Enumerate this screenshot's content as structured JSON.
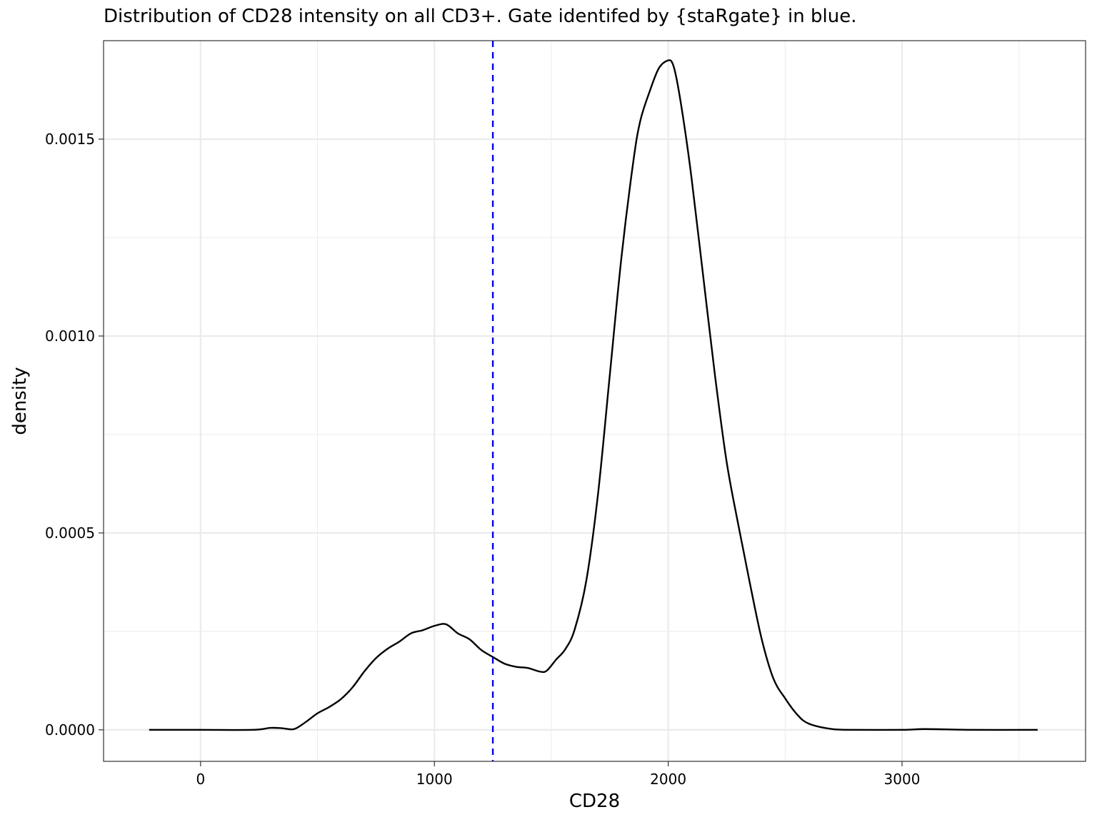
{
  "chart_data": {
    "type": "line",
    "title": "Distribution of CD28 intensity on all CD3+. Gate identifed by {staRgate} in blue.",
    "xlabel": "CD28",
    "ylabel": "density",
    "xlim": [
      -415,
      3785
    ],
    "ylim": [
      -8e-05,
      0.00175
    ],
    "x_ticks": [
      0,
      1000,
      2000,
      3000
    ],
    "x_tick_labels": [
      "0",
      "1000",
      "2000",
      "3000"
    ],
    "y_ticks": [
      0,
      0.0005,
      0.001,
      0.0015
    ],
    "y_tick_labels": [
      "0.0000",
      "0.0005",
      "0.0010",
      "0.0015"
    ],
    "grid": true,
    "colors": {
      "curve": "#000000",
      "gate": "#0000ee",
      "grid": "#ebebeb"
    },
    "series": [
      {
        "x": [
          -220,
          0,
          220,
          300,
          350,
          400,
          450,
          500,
          550,
          600,
          650,
          700,
          750,
          800,
          850,
          900,
          950,
          1000,
          1050,
          1100,
          1150,
          1200,
          1250,
          1300,
          1350,
          1400,
          1450,
          1480,
          1520,
          1560,
          1600,
          1650,
          1700,
          1750,
          1800,
          1850,
          1880,
          1920,
          1960,
          2000,
          2020,
          2040,
          2070,
          2100,
          2150,
          2200,
          2250,
          2300,
          2350,
          2400,
          2450,
          2500,
          2550,
          2600,
          2700,
          2800,
          3000,
          3100,
          3300,
          3580
        ],
        "y": [
          0,
          0,
          0,
          5e-06,
          4e-06,
          2e-06,
          2e-05,
          4.2e-05,
          5.8e-05,
          7.8e-05,
          0.000108,
          0.000148,
          0.000182,
          0.000206,
          0.000224,
          0.000245,
          0.000253,
          0.000264,
          0.000268,
          0.000245,
          0.00023,
          0.000203,
          0.000185,
          0.000168,
          0.00016,
          0.000157,
          0.000148,
          0.00015,
          0.000178,
          0.000205,
          0.000255,
          0.00038,
          0.0006,
          0.0009,
          0.0012,
          0.00144,
          0.001545,
          0.00162,
          0.00168,
          0.0017,
          0.00169,
          0.00164,
          0.00153,
          0.0014,
          0.00115,
          0.0009,
          0.00068,
          0.00052,
          0.00037,
          0.00023,
          0.00013,
          8e-05,
          4e-05,
          1.6e-05,
          2e-06,
          0,
          0,
          2e-06,
          0,
          0
        ]
      }
    ],
    "gate_x": 1250
  }
}
